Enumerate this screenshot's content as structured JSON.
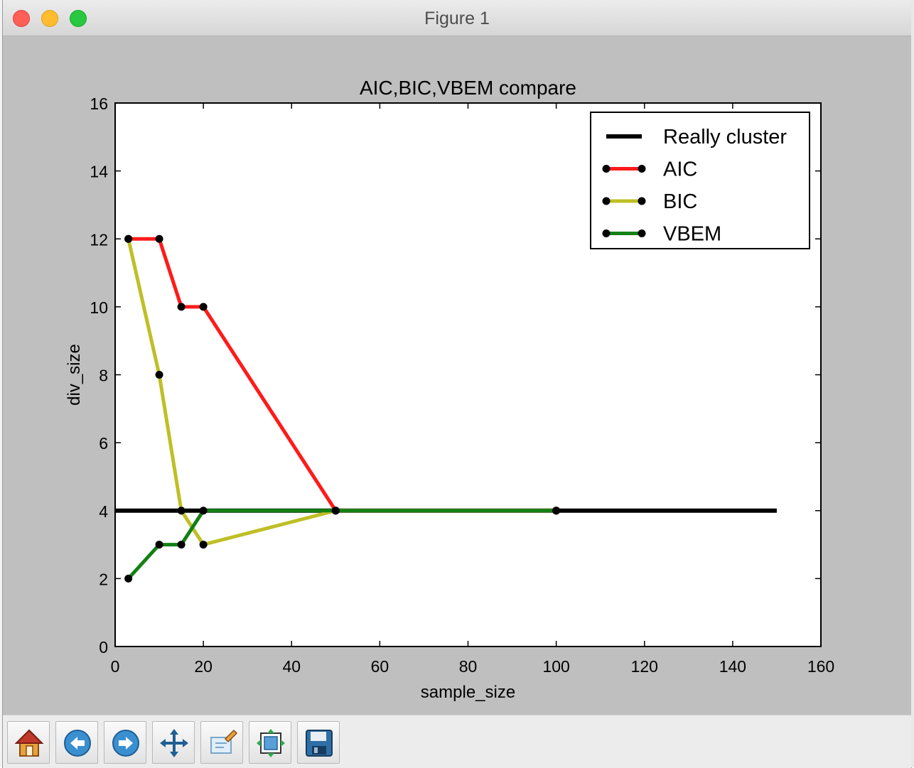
{
  "window": {
    "title": "Figure 1"
  },
  "toolbar": {
    "buttons": [
      {
        "icon": "home-icon"
      },
      {
        "icon": "back-arrow-icon"
      },
      {
        "icon": "forward-arrow-icon"
      },
      {
        "icon": "pan-move-icon"
      },
      {
        "icon": "zoom-rect-icon"
      },
      {
        "icon": "configure-subplots-icon"
      },
      {
        "icon": "save-disk-icon"
      }
    ]
  },
  "colors": {
    "really_cluster": "#000000",
    "aic": "#ff1a1a",
    "bic": "#bfbf26",
    "vbem": "#138013",
    "marker": "#000000",
    "figure_bg": "#bfbfbf",
    "axes_bg": "#ffffff"
  },
  "chart_data": {
    "type": "line",
    "title": "AIC,BIC,VBEM compare",
    "xlabel": "sample_size",
    "ylabel": "div_size",
    "xlim": [
      0,
      160
    ],
    "ylim": [
      0,
      16
    ],
    "xticks": [
      "0",
      "20",
      "40",
      "60",
      "80",
      "100",
      "120",
      "140",
      "160"
    ],
    "yticks": [
      "0",
      "2",
      "4",
      "6",
      "8",
      "10",
      "12",
      "14",
      "16"
    ],
    "grid": false,
    "legend_position": "top-right",
    "series": [
      {
        "name": "Really cluster",
        "x": [
          0,
          150
        ],
        "y": [
          4,
          4
        ],
        "markers": false
      },
      {
        "name": "AIC",
        "x": [
          3,
          10,
          15,
          20,
          50,
          100
        ],
        "y": [
          12,
          12,
          10,
          10,
          4,
          4
        ],
        "markers": true
      },
      {
        "name": "BIC",
        "x": [
          3,
          10,
          15,
          20,
          50,
          100
        ],
        "y": [
          12,
          8,
          4,
          3,
          4,
          4
        ],
        "markers": true
      },
      {
        "name": "VBEM",
        "x": [
          3,
          10,
          15,
          20,
          50,
          100
        ],
        "y": [
          2,
          3,
          3,
          4,
          4,
          4
        ],
        "markers": true
      }
    ]
  }
}
